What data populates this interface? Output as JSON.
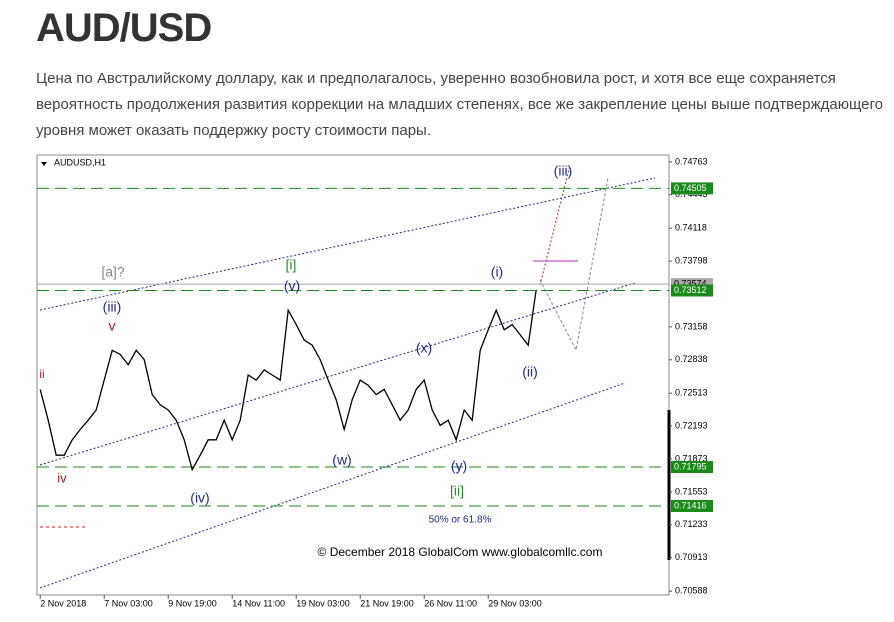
{
  "header": {
    "title": "AUD/USD",
    "paragraph": "Цена по Австралийскому доллару, как и предполагалось, уверенно возобновила рост, и хотя все еще сохраняется вероятность продолжения развития коррекции на младших степенях, все же закрепление цены выше подтверждающего уровня может оказать поддержку росту стоимости пары."
  },
  "chart_data": {
    "type": "line",
    "symbol_label": "AUDUSD,H1",
    "color": "#000000",
    "values": [
      0.7255,
      0.7225,
      0.7191,
      0.7191,
      0.7206,
      0.7216,
      0.7225,
      0.7235,
      0.7264,
      0.7293,
      0.7289,
      0.7279,
      0.7293,
      0.7284,
      0.725,
      0.724,
      0.7235,
      0.7225,
      0.7206,
      0.7177,
      0.7191,
      0.7206,
      0.7206,
      0.7225,
      0.7206,
      0.7225,
      0.7269,
      0.7264,
      0.7274,
      0.7269,
      0.7264,
      0.7332,
      0.7318,
      0.7303,
      0.7298,
      0.7284,
      0.7264,
      0.7245,
      0.7216,
      0.7245,
      0.7264,
      0.7259,
      0.725,
      0.7255,
      0.724,
      0.7225,
      0.7235,
      0.7255,
      0.7264,
      0.7235,
      0.722,
      0.7225,
      0.7206,
      0.7235,
      0.7225,
      0.7293,
      0.7313,
      0.7332,
      0.7313,
      0.7318,
      0.7308,
      0.7298,
      0.7352
    ],
    "xlim": [
      -0.4,
      78.6
    ],
    "xticks": [
      {
        "value": 0,
        "label": "2 Nov 2018"
      },
      {
        "value": 8,
        "label": "7 Nov 03:00"
      },
      {
        "value": 16,
        "label": "9 Nov 19:00"
      },
      {
        "value": 24,
        "label": "14 Nov 11:00"
      },
      {
        "value": 32,
        "label": "19 Nov 03:00"
      },
      {
        "value": 40,
        "label": "21 Nov 19:00"
      },
      {
        "value": 48,
        "label": "26 Nov 11:00"
      },
      {
        "value": 56,
        "label": "29 Nov 03:00"
      }
    ],
    "ylim": [
      0.7055,
      0.7483
    ],
    "yticks": [
      0.74763,
      0.74443,
      0.74118,
      0.73798,
      0.73158,
      0.72838,
      0.72513,
      0.72193,
      0.71873,
      0.71553,
      0.71233,
      0.70913,
      0.70588
    ],
    "levels": [
      {
        "value": 0.74505,
        "color": "#1a8a1a"
      },
      {
        "value": 0.73574,
        "color": "#aaaaaa"
      },
      {
        "value": 0.73512,
        "color": "#1a8a1a"
      },
      {
        "value": 0.71795,
        "color": "#1a8a1a"
      },
      {
        "value": 0.71416,
        "color": "#1a8a1a"
      }
    ],
    "annotations": [
      {
        "text": "ii",
        "color": "#9b1c1c"
      },
      {
        "text": "iv",
        "color": "#9b1c1c"
      },
      {
        "text": "v",
        "color": "#9b1c1c"
      },
      {
        "text": "(iii)",
        "color": "#1f2a8a"
      },
      {
        "text": "[a]?",
        "color": "#888888"
      },
      {
        "text": "[i]",
        "color": "#2a8a2a"
      },
      {
        "text": "(v)",
        "color": "#1f2a8a"
      },
      {
        "text": "(iv)",
        "color": "#1f2a8a"
      },
      {
        "text": "(w)",
        "color": "#1f2a8a"
      },
      {
        "text": "(x)",
        "color": "#1f2a8a"
      },
      {
        "text": "(y)",
        "color": "#1f2a8a"
      },
      {
        "text": "[ii]",
        "color": "#2a8a2a"
      },
      {
        "text": "50% or 61.8%",
        "color": "#1f2a8a"
      },
      {
        "text": "(i)",
        "color": "#1f2a8a"
      },
      {
        "text": "(ii)",
        "color": "#1f2a8a"
      },
      {
        "text": "(iii)",
        "color": "#1f2a8a"
      },
      {
        "text": "© December 2018 GlobalCom www.globalcomllc.com",
        "color": "#000000"
      }
    ]
  }
}
